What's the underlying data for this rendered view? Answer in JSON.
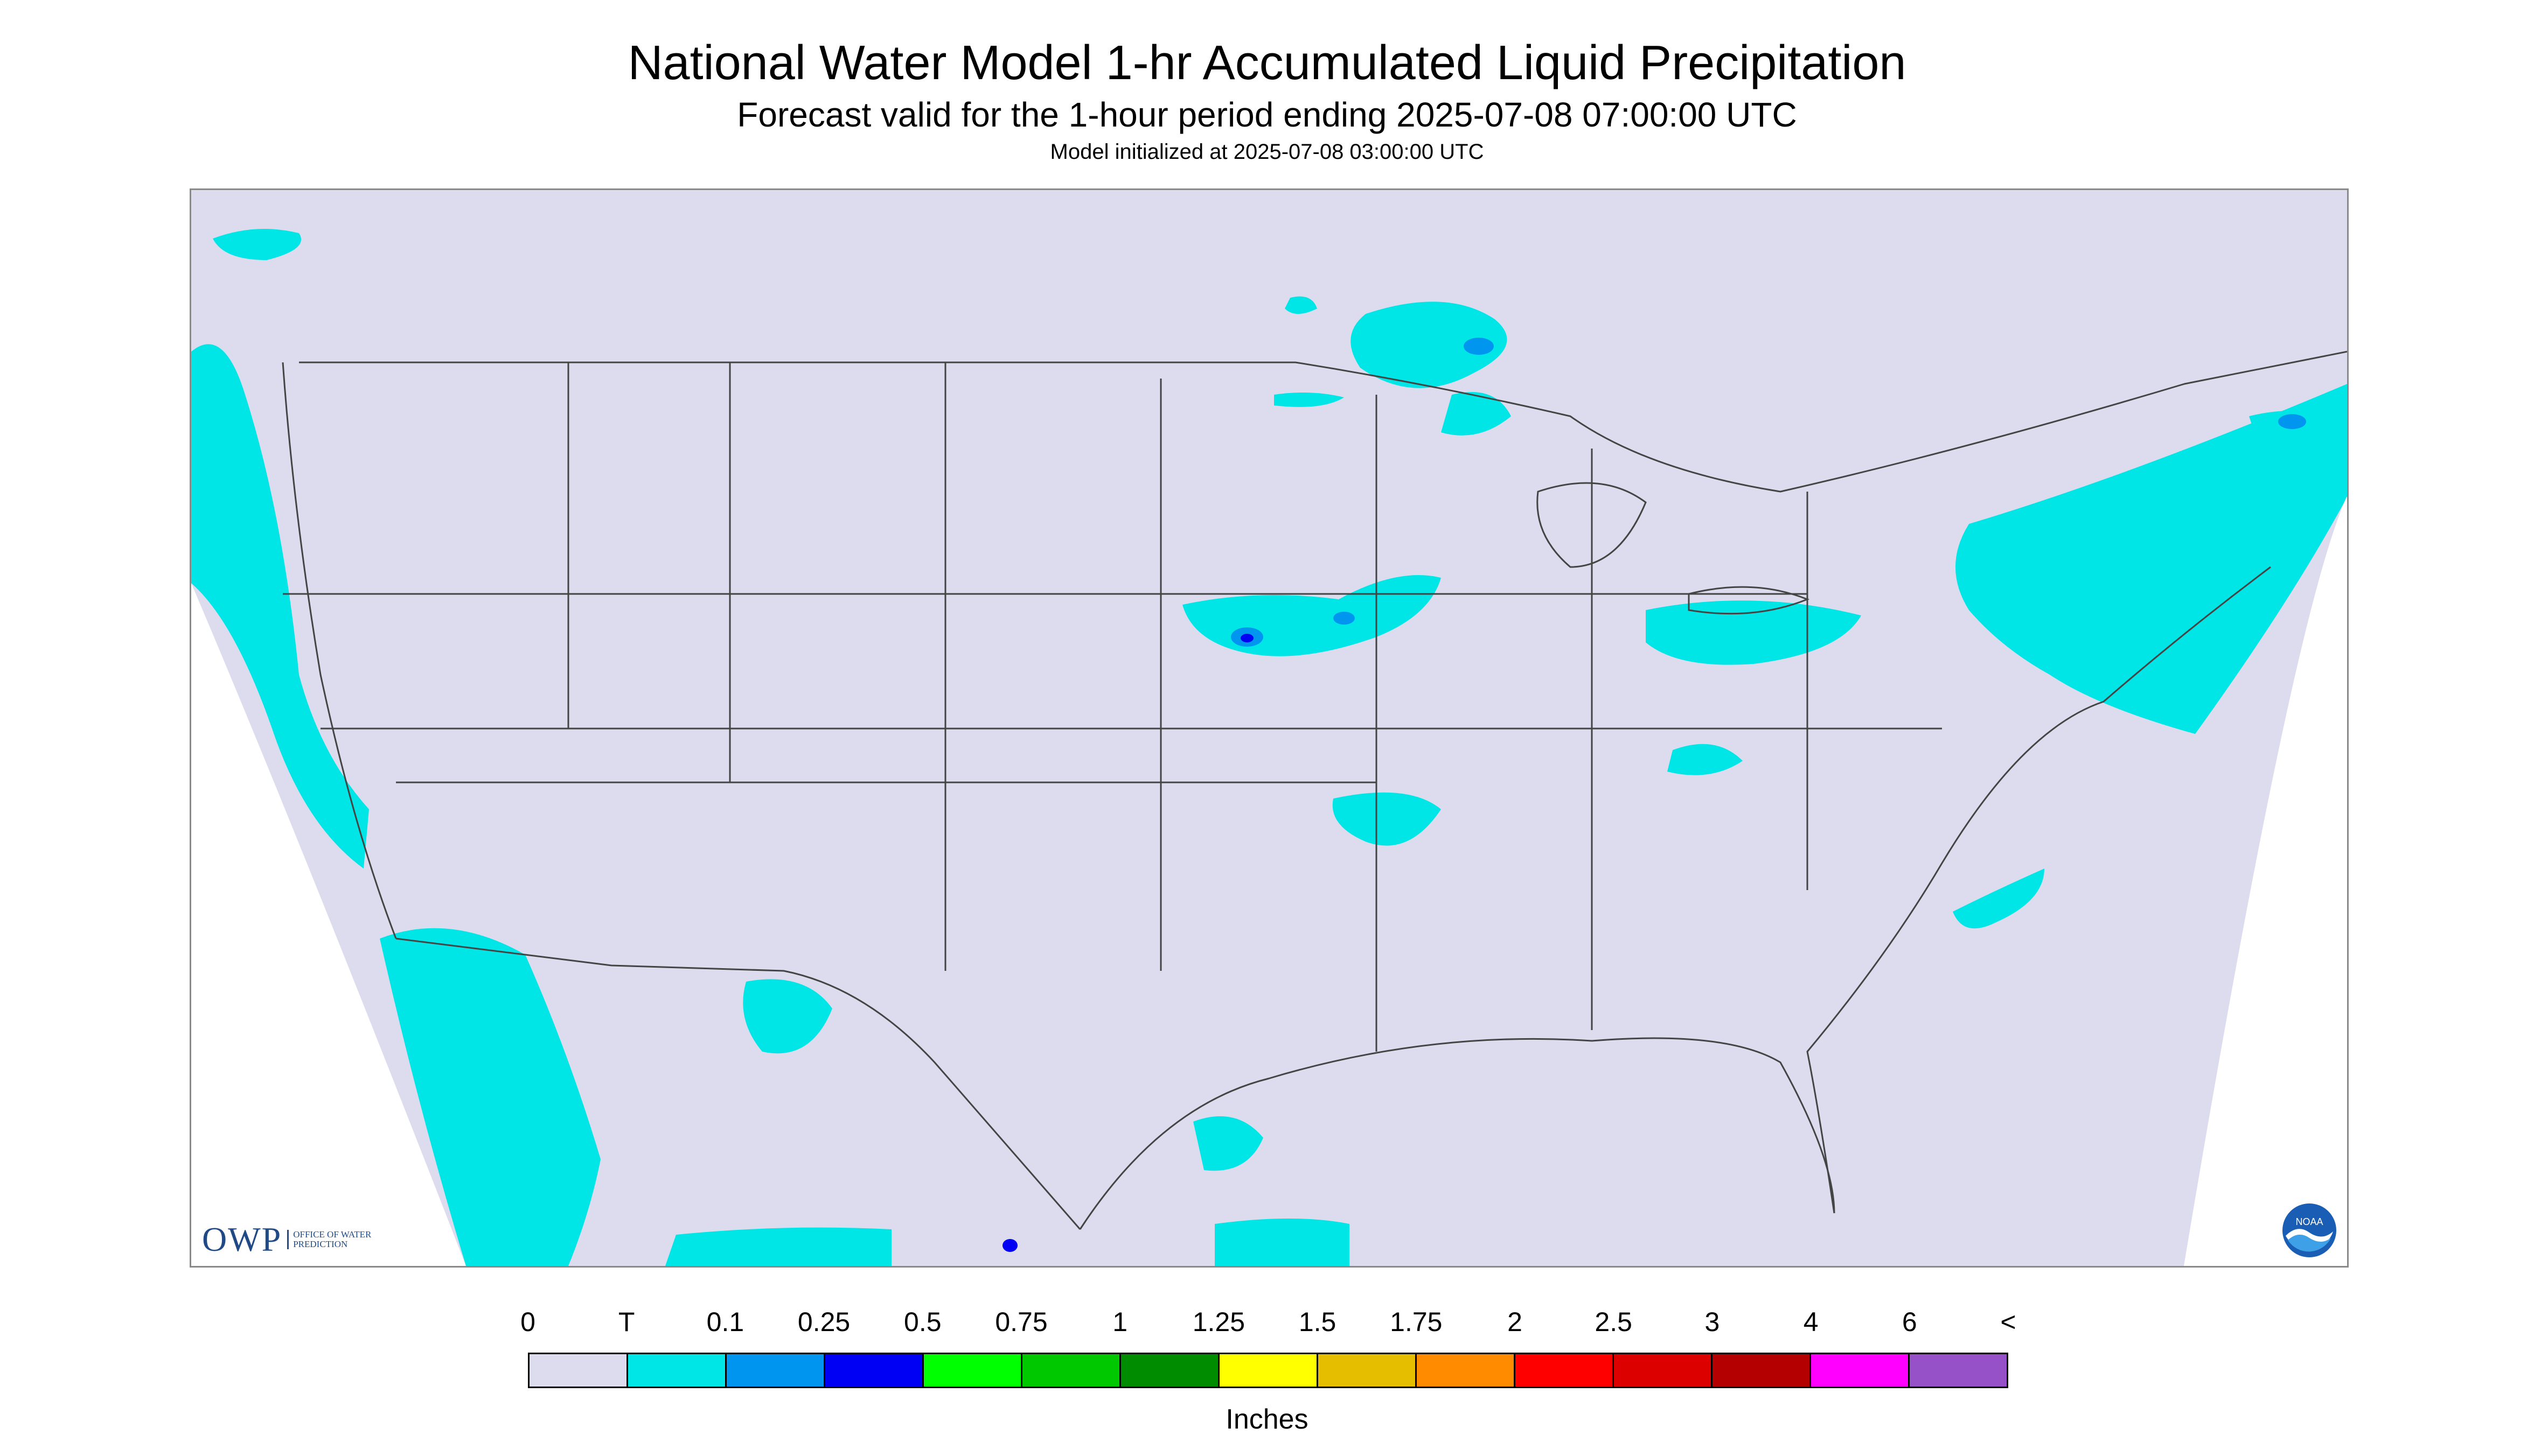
{
  "header": {
    "title": "National Water Model 1-hr Accumulated Liquid Precipitation",
    "subtitle": "Forecast valid for the 1-hour period ending 2025-07-08 07:00:00 UTC",
    "init_line": "Model initialized at 2025-07-08 03:00:00 UTC"
  },
  "map": {
    "owp_logo": {
      "mark": "OWP",
      "text": "OFFICE OF WATER PREDICTION"
    },
    "noaa_logo": {
      "text": "NOAA"
    },
    "colors": {
      "background": "#dcdcee",
      "outside": "#ffffff",
      "light_precip": "#00e6e6",
      "medium_precip": "#0096f0",
      "heavy_precip": "#0000f5",
      "boundary": "#444444"
    }
  },
  "legend": {
    "labels": [
      "0",
      "T",
      "0.1",
      "0.25",
      "0.5",
      "0.75",
      "1",
      "1.25",
      "1.5",
      "1.75",
      "2",
      "2.5",
      "3",
      "4",
      "6",
      "<"
    ],
    "colors": [
      "#dcdcee",
      "#00e6e6",
      "#0096f0",
      "#0000f5",
      "#00ff00",
      "#00c800",
      "#008c00",
      "#ffff00",
      "#e6be00",
      "#ff8c00",
      "#ff0000",
      "#dc0000",
      "#b40000",
      "#ff00ff",
      "#9650c8"
    ],
    "units": "Inches"
  }
}
